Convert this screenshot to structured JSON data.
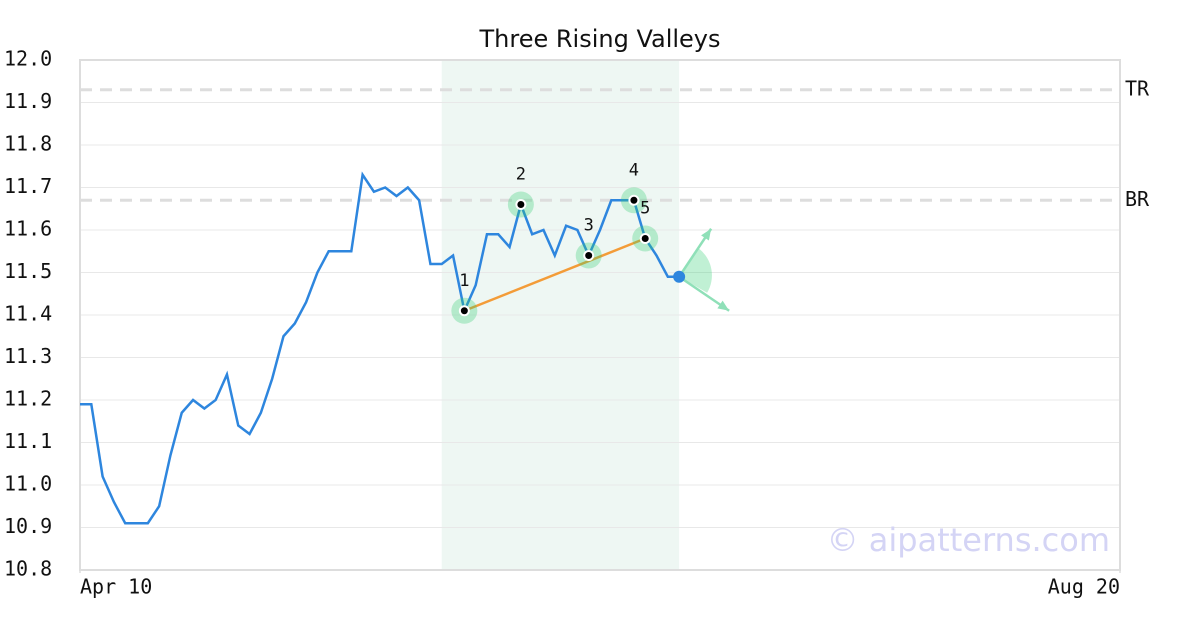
{
  "chart_data": {
    "type": "line",
    "title": "Three Rising Valleys",
    "x": [
      0,
      1,
      2,
      3,
      4,
      5,
      6,
      7,
      8,
      9,
      10,
      11,
      12,
      13,
      14,
      15,
      16,
      17,
      18,
      19,
      20,
      21,
      22,
      23,
      24,
      25,
      26,
      27,
      28,
      29,
      30,
      31,
      32,
      33,
      34,
      35,
      36,
      37,
      38,
      39,
      40,
      41,
      42,
      43,
      44,
      45,
      46,
      47,
      48,
      49,
      50,
      51,
      52,
      53
    ],
    "values": [
      11.19,
      11.19,
      11.02,
      10.96,
      10.91,
      10.91,
      10.91,
      10.95,
      11.07,
      11.17,
      11.2,
      11.18,
      11.2,
      11.26,
      11.14,
      11.12,
      11.17,
      11.25,
      11.35,
      11.38,
      11.43,
      11.5,
      11.55,
      11.55,
      11.55,
      11.73,
      11.69,
      11.7,
      11.68,
      11.7,
      11.67,
      11.52,
      11.52,
      11.54,
      11.41,
      11.47,
      11.59,
      11.59,
      11.56,
      11.66,
      11.59,
      11.6,
      11.54,
      11.61,
      11.6,
      11.54,
      11.6,
      11.67,
      11.67,
      11.67,
      11.58,
      11.54,
      11.49,
      11.49
    ],
    "color": "#2e86de",
    "xlim": [
      0,
      92
    ],
    "xticks": [
      {
        "value": 0,
        "label": "Apr 10"
      },
      {
        "value": 92,
        "label": "Aug 20"
      }
    ],
    "ylim": [
      10.8,
      12.0
    ],
    "yticks": [
      10.8,
      10.9,
      {
        "value": 11.0,
        "label": "11.0"
      },
      11.1,
      11.2,
      11.3,
      11.4,
      11.5,
      11.6,
      11.7,
      11.8,
      11.9,
      {
        "value": 12.0,
        "label": "12.0"
      }
    ],
    "grid": true,
    "highlight": {
      "x": [
        32,
        53
      ],
      "color": "#eef7f3"
    },
    "levels": [
      {
        "label": "TR",
        "value": 11.93
      },
      {
        "label": "BR",
        "value": 11.67
      }
    ],
    "pattern_points": [
      {
        "label": "1",
        "x": 34,
        "value": 11.41
      },
      {
        "label": "2",
        "x": 39,
        "value": 11.66
      },
      {
        "label": "3",
        "x": 45,
        "value": 11.54
      },
      {
        "label": "4",
        "x": 49,
        "value": 11.67
      },
      {
        "label": "5",
        "x": 50,
        "value": 11.58
      }
    ],
    "trend_color": "#f39c38",
    "watermark": "© aipatterns.com"
  }
}
